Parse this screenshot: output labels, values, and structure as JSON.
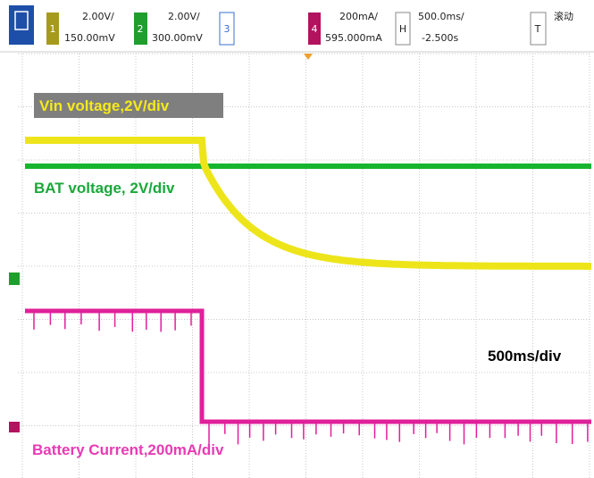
{
  "toolbar": {
    "channels": [
      {
        "number": "1",
        "scale": "2.00V/",
        "offset": "150.00mV"
      },
      {
        "number": "2",
        "scale": "2.00V/",
        "offset": "300.00mV"
      },
      {
        "number": "3"
      },
      {
        "number": "4",
        "scale": "200mA/",
        "offset": "595.000mA"
      }
    ],
    "horizontal": {
      "key": "H",
      "scale": "500.0ms/",
      "offset": "-2.500s"
    },
    "trigger": {
      "key": "T",
      "mode": "滚动"
    }
  },
  "annotations": {
    "vin": "Vin voltage,2V/div",
    "bat": "BAT voltage, 2V/div",
    "time": "500ms/div",
    "current": "Battery Current,200mA/div"
  }
}
